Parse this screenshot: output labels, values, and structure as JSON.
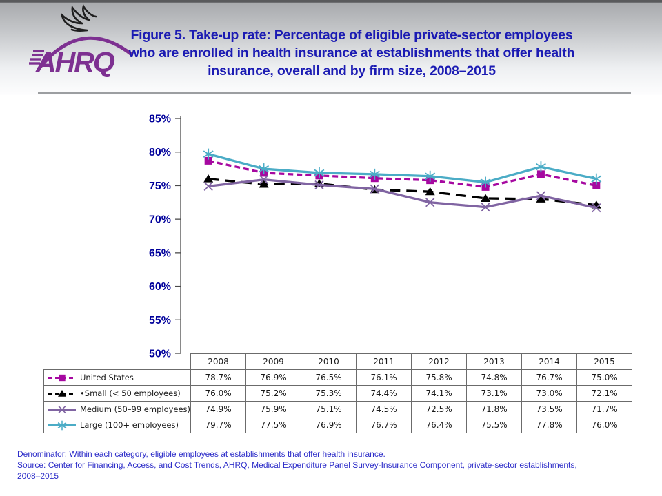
{
  "header": {
    "logo_text": "AHRQ",
    "title_lines": [
      "Figure 5. Take-up rate: Percentage of eligible private-sector employees",
      "who are enrolled in health insurance at establishments that offer health",
      "insurance, overall and by firm size, 2008–2015"
    ],
    "title_color": "#1b1bb3",
    "logo_color": "#7d3091"
  },
  "chart_data": {
    "type": "line",
    "x": [
      2008,
      2009,
      2010,
      2011,
      2012,
      2013,
      2014,
      2015
    ],
    "series": [
      {
        "name": "United States",
        "values": [
          78.7,
          76.9,
          76.5,
          76.1,
          75.8,
          74.8,
          76.7,
          75.0
        ],
        "color": "#a608a0",
        "dash": "8 5",
        "marker": "square"
      },
      {
        "name": "•Small (< 50 employees)",
        "values": [
          76.0,
          75.2,
          75.3,
          74.4,
          74.1,
          73.1,
          73.0,
          72.1
        ],
        "color": "#000000",
        "dash": "15 9",
        "marker": "triangle"
      },
      {
        "name": "Medium (50–99 employees)",
        "values": [
          74.9,
          75.9,
          75.1,
          74.5,
          72.5,
          71.8,
          73.5,
          71.7
        ],
        "color": "#8064a2",
        "dash": null,
        "marker": "x"
      },
      {
        "name": "Large (100+ employees)",
        "values": [
          79.7,
          77.5,
          76.9,
          76.7,
          76.4,
          75.5,
          77.8,
          76.0
        ],
        "color": "#4bacc6",
        "dash": null,
        "marker": "asterisk"
      }
    ],
    "title": "",
    "xlabel": "",
    "ylabel": "",
    "ylim": [
      50,
      85
    ],
    "y_tick_labels": [
      "85%",
      "80%",
      "75%",
      "70%",
      "65%",
      "60%",
      "55%",
      "50%"
    ],
    "grid": false,
    "legend_position": "table-left-column"
  },
  "table": {
    "columns": [
      "2008",
      "2009",
      "2010",
      "2011",
      "2012",
      "2013",
      "2014",
      "2015"
    ],
    "rows": [
      {
        "label": "United States",
        "values": [
          "78.7%",
          "76.9%",
          "76.5%",
          "76.1%",
          "75.8%",
          "74.8%",
          "76.7%",
          "75.0%"
        ]
      },
      {
        "label": "•Small (< 50 employees)",
        "values": [
          "76.0%",
          "75.2%",
          "75.3%",
          "74.4%",
          "74.1%",
          "73.1%",
          "73.0%",
          "72.1%"
        ]
      },
      {
        "label": "Medium (50–99 employees)",
        "values": [
          "74.9%",
          "75.9%",
          "75.1%",
          "74.5%",
          "72.5%",
          "71.8%",
          "73.5%",
          "71.7%"
        ]
      },
      {
        "label": "Large (100+ employees)",
        "values": [
          "79.7%",
          "77.5%",
          "76.9%",
          "76.7%",
          "76.4%",
          "75.5%",
          "77.8%",
          "76.0%"
        ]
      }
    ]
  },
  "footer": {
    "lines": [
      "Denominator: Within each category, eligible employees at establishments that offer health insurance.",
      "Source: Center for Financing, Access, and Cost Trends, AHRQ, Medical Expenditure Panel Survey-Insurance Component, private-sector establishments,",
      "2008–2015"
    ],
    "color": "#2e2ec9"
  }
}
